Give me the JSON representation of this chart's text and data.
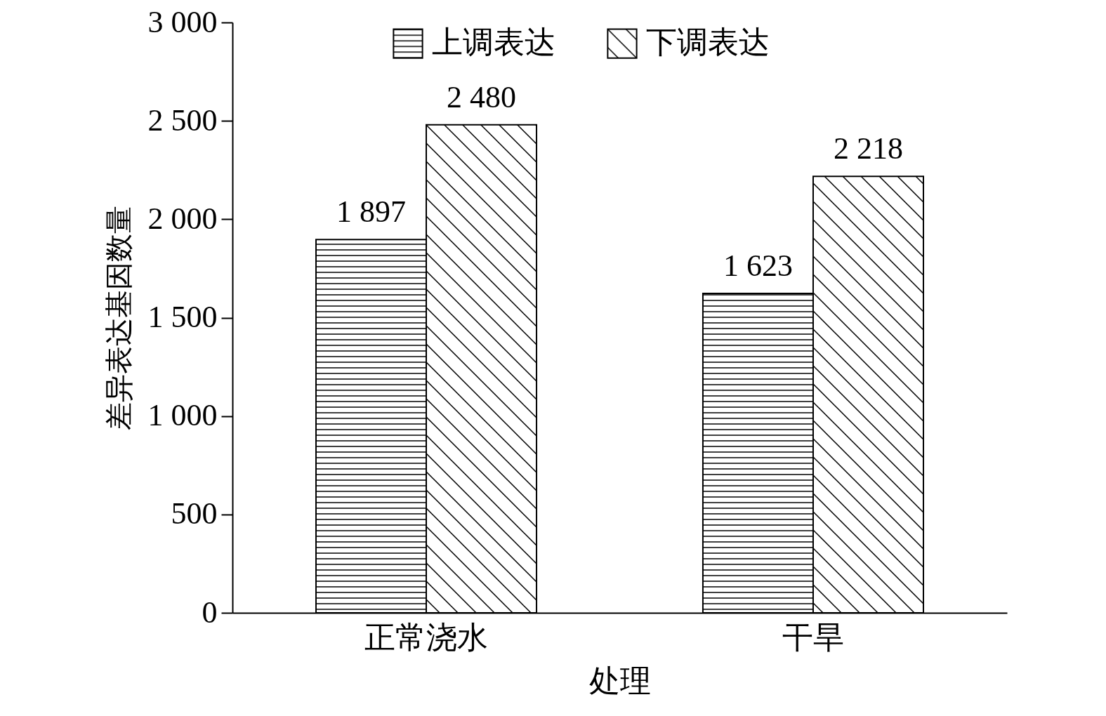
{
  "chart_data": {
    "type": "bar",
    "xlabel": "处理",
    "ylabel": "差异表达基因数量",
    "categories": [
      "正常浇水",
      "干旱"
    ],
    "series": [
      {
        "name": "上调表达",
        "color": "#000000",
        "values": [
          1897,
          1623
        ],
        "value_labels": [
          "1 897",
          "1 623"
        ]
      },
      {
        "name": "下调表达",
        "color": "#000000",
        "values": [
          2480,
          2218
        ],
        "value_labels": [
          "2 480",
          "2 218"
        ]
      }
    ],
    "ylim": [
      0,
      3000
    ],
    "yticks": [
      {
        "value": 0,
        "label": "0"
      },
      {
        "value": 500,
        "label": "500"
      },
      {
        "value": 1000,
        "label": "1 000"
      },
      {
        "value": 1500,
        "label": "1 500"
      },
      {
        "value": 2000,
        "label": "2 000"
      },
      {
        "value": 2500,
        "label": "2 500"
      },
      {
        "value": 3000,
        "label": "3 000"
      }
    ],
    "legend": "top",
    "grid": false
  }
}
